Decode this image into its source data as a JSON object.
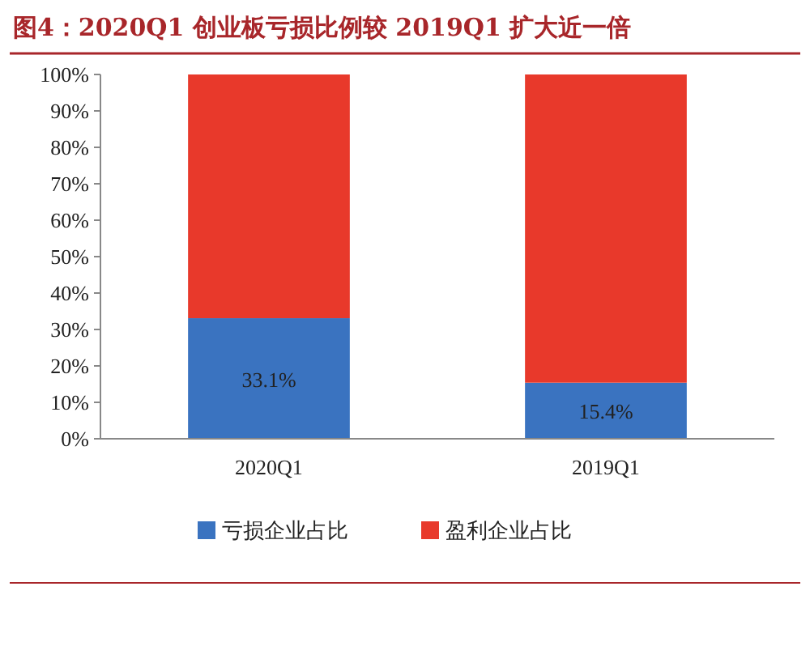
{
  "chart_data": {
    "type": "bar",
    "title": "图4：2020Q1 创业板亏损比例较 2019Q1 扩大近一倍",
    "categories": [
      "2020Q1",
      "2019Q1"
    ],
    "stacked": true,
    "ylim": [
      0,
      100
    ],
    "yticks": [
      {
        "value": 0,
        "label": "0%"
      },
      {
        "value": 10,
        "label": "10%"
      },
      {
        "value": 20,
        "label": "20%"
      },
      {
        "value": 30,
        "label": "30%"
      },
      {
        "value": 40,
        "label": "40%"
      },
      {
        "value": 50,
        "label": "50%"
      },
      {
        "value": 60,
        "label": "60%"
      },
      {
        "value": 70,
        "label": "70%"
      },
      {
        "value": 80,
        "label": "80%"
      },
      {
        "value": 90,
        "label": "90%"
      },
      {
        "value": 100,
        "label": "100%"
      }
    ],
    "series": [
      {
        "name": "亏损企业占比",
        "color": "#3a73c0",
        "values": [
          33.1,
          15.4
        ],
        "value_labels": [
          "33.1%",
          "15.4%"
        ]
      },
      {
        "name": "盈利企业占比",
        "color": "#e8392b",
        "values": [
          66.9,
          84.6
        ]
      }
    ],
    "legend": "bottom",
    "grid": false
  }
}
